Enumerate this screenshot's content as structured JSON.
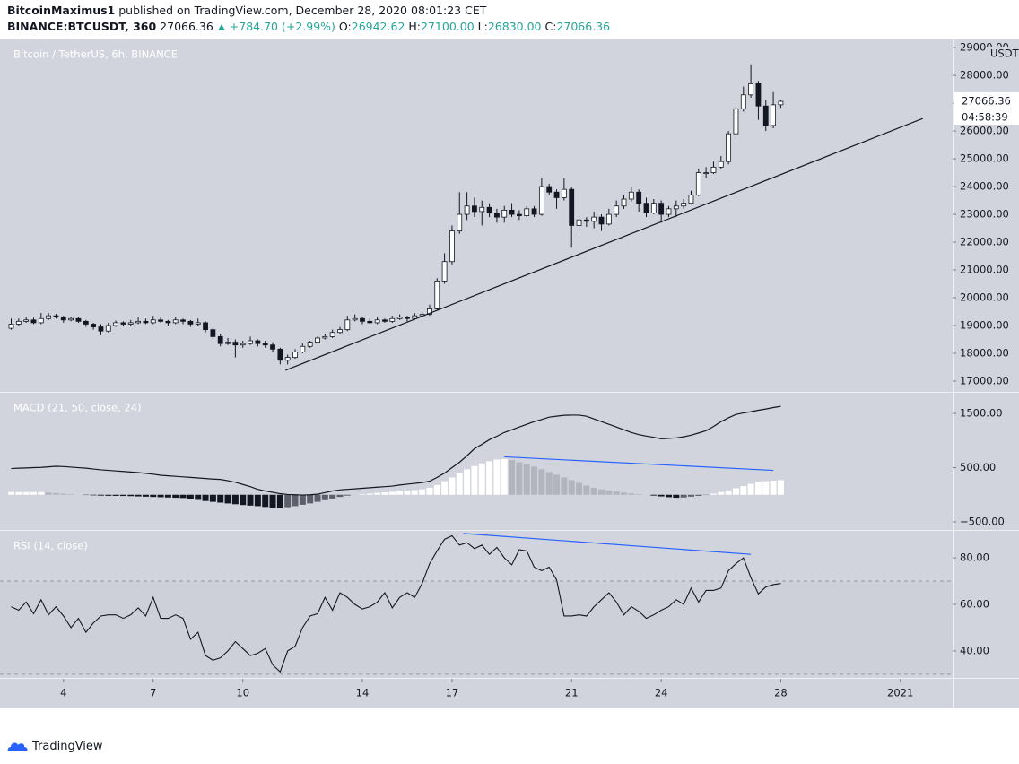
{
  "header": {
    "author": "BitcoinMaximus1",
    "published": "published on TradingView.com, December 28, 2020 08:01:23 CET",
    "symbol": "BINANCE:BTCUSDT, 360",
    "price": "27066.36",
    "change": "+784.70 (+2.99%)",
    "o_label": "O:",
    "o": "26942.62",
    "h_label": "H:",
    "h": "27100.00",
    "l_label": "L:",
    "l": "26830.00",
    "c_label": "C:",
    "c": "27066.36"
  },
  "footer": {
    "brand": "TradingView"
  },
  "chart_data": [
    {
      "type": "candlestick",
      "title": "Bitcoin / TetherUS, 6h, BINANCE",
      "y_unit": "USDT",
      "countdown": "04:58:39",
      "up_color": "#ffffff",
      "down_color": "#131722",
      "xlim": [
        -1.5,
        126
      ],
      "ylim": [
        16612,
        29294
      ],
      "yticks": [
        {
          "value": 17000,
          "label": "17000.00"
        },
        {
          "value": 18000,
          "label": "18000.00"
        },
        {
          "value": 19000,
          "label": "19000.00"
        },
        {
          "value": 20000,
          "label": "20000.00"
        },
        {
          "value": 21000,
          "label": "21000.00"
        },
        {
          "value": 22000,
          "label": "22000.00"
        },
        {
          "value": 23000,
          "label": "23000.00"
        },
        {
          "value": 24000,
          "label": "24000.00"
        },
        {
          "value": 25000,
          "label": "25000.00"
        },
        {
          "value": 26000,
          "label": "26000.00"
        },
        {
          "value": 27000,
          "label": "27000.00"
        },
        {
          "value": 28000,
          "label": "28000.00"
        },
        {
          "value": 29000,
          "label": "29000.00"
        }
      ],
      "trend_line": {
        "x": [
          36.7,
          122
        ],
        "y": [
          17390,
          26450
        ],
        "color": "#131722"
      },
      "ohlc": [
        [
          18900,
          19250,
          18850,
          19050
        ],
        [
          19050,
          19250,
          19000,
          19150
        ],
        [
          19150,
          19300,
          19100,
          19200
        ],
        [
          19200,
          19280,
          19050,
          19100
        ],
        [
          19100,
          19450,
          19050,
          19250
        ],
        [
          19250,
          19450,
          19200,
          19350
        ],
        [
          19350,
          19420,
          19250,
          19300
        ],
        [
          19300,
          19350,
          19100,
          19200
        ],
        [
          19200,
          19320,
          19150,
          19250
        ],
        [
          19250,
          19300,
          19100,
          19150
        ],
        [
          19150,
          19200,
          18950,
          19050
        ],
        [
          19050,
          19100,
          18850,
          18950
        ],
        [
          18950,
          19050,
          18650,
          18800
        ],
        [
          18800,
          19100,
          18750,
          19000
        ],
        [
          19000,
          19180,
          18950,
          19100
        ],
        [
          19100,
          19150,
          19000,
          19050
        ],
        [
          19050,
          19200,
          19000,
          19100
        ],
        [
          19100,
          19300,
          19050,
          19150
        ],
        [
          19150,
          19250,
          19050,
          19100
        ],
        [
          19100,
          19350,
          19050,
          19200
        ],
        [
          19200,
          19300,
          19100,
          19150
        ],
        [
          19150,
          19200,
          19000,
          19100
        ],
        [
          19100,
          19300,
          19050,
          19200
        ],
        [
          19200,
          19250,
          19050,
          19150
        ],
        [
          19150,
          19200,
          18950,
          19050
        ],
        [
          19050,
          19250,
          19000,
          19100
        ],
        [
          19100,
          19150,
          18750,
          18850
        ],
        [
          18850,
          18950,
          18500,
          18600
        ],
        [
          18600,
          18700,
          18250,
          18350
        ],
        [
          18350,
          18550,
          18300,
          18400
        ],
        [
          18400,
          18500,
          17850,
          18300
        ],
        [
          18300,
          18450,
          18200,
          18350
        ],
        [
          18350,
          18600,
          18300,
          18450
        ],
        [
          18450,
          18500,
          18250,
          18350
        ],
        [
          18350,
          18450,
          18200,
          18300
        ],
        [
          18300,
          18400,
          18050,
          18150
        ],
        [
          18150,
          18200,
          17600,
          17750
        ],
        [
          17750,
          17950,
          17600,
          17850
        ],
        [
          17850,
          18150,
          17800,
          18050
        ],
        [
          18050,
          18350,
          18000,
          18250
        ],
        [
          18250,
          18450,
          18200,
          18400
        ],
        [
          18400,
          18600,
          18350,
          18550
        ],
        [
          18550,
          18700,
          18500,
          18600
        ],
        [
          18600,
          18850,
          18550,
          18750
        ],
        [
          18750,
          18950,
          18700,
          18850
        ],
        [
          18850,
          19350,
          18800,
          19200
        ],
        [
          19200,
          19400,
          19150,
          19250
        ],
        [
          19250,
          19300,
          19050,
          19150
        ],
        [
          19150,
          19250,
          19050,
          19100
        ],
        [
          19100,
          19300,
          19050,
          19200
        ],
        [
          19200,
          19250,
          19100,
          19150
        ],
        [
          19150,
          19350,
          19100,
          19250
        ],
        [
          19250,
          19400,
          19200,
          19300
        ],
        [
          19300,
          19350,
          19150,
          19250
        ],
        [
          19250,
          19450,
          19200,
          19350
        ],
        [
          19350,
          19500,
          19300,
          19400
        ],
        [
          19400,
          19750,
          19350,
          19600
        ],
        [
          19600,
          20700,
          19550,
          20600
        ],
        [
          20600,
          21600,
          20500,
          21300
        ],
        [
          21300,
          22600,
          21200,
          22400
        ],
        [
          22400,
          23800,
          22300,
          23000
        ],
        [
          23000,
          23800,
          22800,
          23300
        ],
        [
          23300,
          23600,
          22900,
          23100
        ],
        [
          23100,
          23500,
          22600,
          23250
        ],
        [
          23250,
          23400,
          22900,
          23050
        ],
        [
          23050,
          23200,
          22700,
          22900
        ],
        [
          22900,
          23300,
          22700,
          23150
        ],
        [
          23150,
          23400,
          22900,
          23000
        ],
        [
          23000,
          23150,
          22800,
          22950
        ],
        [
          22950,
          23300,
          22900,
          23200
        ],
        [
          23200,
          23300,
          22900,
          23000
        ],
        [
          23000,
          24300,
          22950,
          24000
        ],
        [
          24000,
          24100,
          23700,
          23800
        ],
        [
          23800,
          23900,
          23200,
          23600
        ],
        [
          23600,
          24300,
          23500,
          23900
        ],
        [
          23900,
          24000,
          21800,
          22600
        ],
        [
          22600,
          22950,
          22400,
          22800
        ],
        [
          22800,
          22900,
          22550,
          22750
        ],
        [
          22750,
          23100,
          22500,
          22900
        ],
        [
          22900,
          23000,
          22400,
          22650
        ],
        [
          22650,
          23200,
          22600,
          23000
        ],
        [
          23000,
          23500,
          22900,
          23300
        ],
        [
          23300,
          23700,
          23200,
          23550
        ],
        [
          23550,
          24000,
          23450,
          23800
        ],
        [
          23800,
          23900,
          23100,
          23400
        ],
        [
          23400,
          23600,
          22900,
          23050
        ],
        [
          23050,
          23550,
          23000,
          23400
        ],
        [
          23400,
          23500,
          22700,
          23000
        ],
        [
          23000,
          23300,
          22900,
          23200
        ],
        [
          23200,
          23500,
          22900,
          23300
        ],
        [
          23300,
          23550,
          23200,
          23400
        ],
        [
          23400,
          23850,
          23350,
          23700
        ],
        [
          23700,
          24650,
          23650,
          24500
        ],
        [
          24500,
          24700,
          24300,
          24500
        ],
        [
          24500,
          24900,
          24450,
          24700
        ],
        [
          24700,
          25100,
          24650,
          24900
        ],
        [
          24900,
          26000,
          24800,
          25900
        ],
        [
          25900,
          26900,
          25700,
          26800
        ],
        [
          26800,
          27600,
          26700,
          27300
        ],
        [
          27300,
          28400,
          27200,
          27700
        ],
        [
          27700,
          27800,
          26400,
          26900
        ],
        [
          26900,
          27100,
          26000,
          26200
        ],
        [
          26200,
          27400,
          26100,
          26942.62
        ],
        [
          26942.62,
          27100,
          26830,
          27066.36
        ]
      ]
    },
    {
      "type": "macd",
      "title": "MACD (21, 50, close, 24)",
      "line_color": "#131722",
      "histogram_colors": {
        "rising_positive": "#ffffff",
        "falling_positive": "#b2b5be",
        "falling_negative": "#131722",
        "rising_negative": "#5d606b"
      },
      "xlim": [
        -1.5,
        126
      ],
      "ylim": [
        -650,
        1883
      ],
      "yticks": [
        {
          "value": -500,
          "label": "−500.00"
        },
        {
          "value": 500,
          "label": "500.00"
        },
        {
          "value": 1500,
          "label": "1500.00"
        }
      ],
      "trend_line": {
        "x": [
          66,
          102
        ],
        "y": [
          700,
          450
        ],
        "color": "#2962ff"
      },
      "macd": [
        483,
        490,
        495,
        500,
        505,
        515,
        525,
        520,
        510,
        500,
        490,
        475,
        460,
        450,
        440,
        430,
        420,
        410,
        395,
        380,
        360,
        350,
        340,
        330,
        320,
        310,
        300,
        290,
        283,
        260,
        230,
        190,
        150,
        100,
        70,
        45,
        20,
        5,
        0,
        -5,
        0,
        10,
        40,
        70,
        90,
        100,
        110,
        120,
        130,
        140,
        150,
        160,
        180,
        195,
        210,
        225,
        250,
        320,
        400,
        500,
        600,
        720,
        850,
        930,
        1017,
        1080,
        1150,
        1200,
        1250,
        1300,
        1350,
        1390,
        1433,
        1450,
        1467,
        1470,
        1470,
        1450,
        1400,
        1350,
        1300,
        1250,
        1200,
        1150,
        1110,
        1083,
        1060,
        1033,
        1040,
        1050,
        1070,
        1100,
        1140,
        1183,
        1260,
        1350,
        1420,
        1483,
        1510,
        1533,
        1560,
        1583,
        1610,
        1633
      ],
      "histogram": [
        50,
        50,
        50,
        50,
        50,
        40,
        30,
        20,
        10,
        0,
        -5,
        -10,
        -15,
        -18,
        -20,
        -22,
        -25,
        -30,
        -35,
        -40,
        -45,
        -50,
        -55,
        -60,
        -75,
        -95,
        -115,
        -130,
        -145,
        -160,
        -175,
        -190,
        -200,
        -210,
        -225,
        -240,
        -250,
        -230,
        -210,
        -185,
        -160,
        -130,
        -100,
        -70,
        -40,
        -15,
        0,
        10,
        20,
        35,
        45,
        55,
        65,
        75,
        85,
        100,
        130,
        180,
        250,
        320,
        400,
        470,
        530,
        580,
        620,
        650,
        660,
        640,
        600,
        560,
        520,
        470,
        420,
        370,
        320,
        270,
        220,
        170,
        130,
        100,
        80,
        60,
        40,
        25,
        10,
        0,
        -15,
        -30,
        -45,
        -55,
        -50,
        -35,
        -20,
        -5,
        20,
        50,
        80,
        120,
        160,
        200,
        240,
        250,
        260,
        270
      ]
    },
    {
      "type": "line",
      "title": "RSI (14, close)",
      "color": "#131722",
      "xlim": [
        -1.5,
        126
      ],
      "ylim": [
        28.4,
        91.6
      ],
      "yticks": [
        {
          "value": 40,
          "label": "40.00"
        },
        {
          "value": 60,
          "label": "60.00"
        },
        {
          "value": 80,
          "label": "80.00"
        }
      ],
      "xticks": [
        {
          "value": 7,
          "label": "4"
        },
        {
          "value": 19,
          "label": "7"
        },
        {
          "value": 31,
          "label": "10"
        },
        {
          "value": 47,
          "label": "14"
        },
        {
          "value": 59,
          "label": "17"
        },
        {
          "value": 75,
          "label": "21"
        },
        {
          "value": 87,
          "label": "24"
        },
        {
          "value": 103,
          "label": "28"
        },
        {
          "value": 119,
          "label": "2021"
        }
      ],
      "levels": [
        30,
        70
      ],
      "trend_line": {
        "x": [
          60.5,
          99
        ],
        "y": [
          90.5,
          81.5
        ],
        "color": "#2962ff"
      },
      "values": [
        59,
        57.5,
        61,
        56,
        62,
        55.5,
        59,
        55,
        50,
        54,
        48,
        52,
        55,
        55.5,
        55.5,
        54,
        55.5,
        58.5,
        55,
        63,
        54,
        54,
        55.5,
        54,
        45,
        48,
        38,
        36,
        37,
        40,
        44,
        41,
        38,
        39,
        41,
        34,
        31,
        40,
        42,
        50,
        55,
        56,
        63,
        57.5,
        65,
        63,
        60,
        58,
        59,
        61,
        65,
        58.5,
        63,
        65,
        63,
        69,
        77.5,
        83,
        88,
        89.5,
        85.5,
        86.5,
        84,
        85.5,
        81.5,
        84.5,
        80,
        77,
        83.5,
        83,
        76,
        74.5,
        76,
        70.5,
        55,
        55,
        55.5,
        55,
        59,
        62,
        65,
        61,
        55.5,
        59,
        57,
        54,
        55.5,
        57.5,
        59,
        62,
        60,
        67,
        61,
        66,
        66,
        67,
        74.5,
        77.5,
        80,
        71.5,
        64.5,
        67.5,
        68.5,
        69
      ]
    }
  ]
}
